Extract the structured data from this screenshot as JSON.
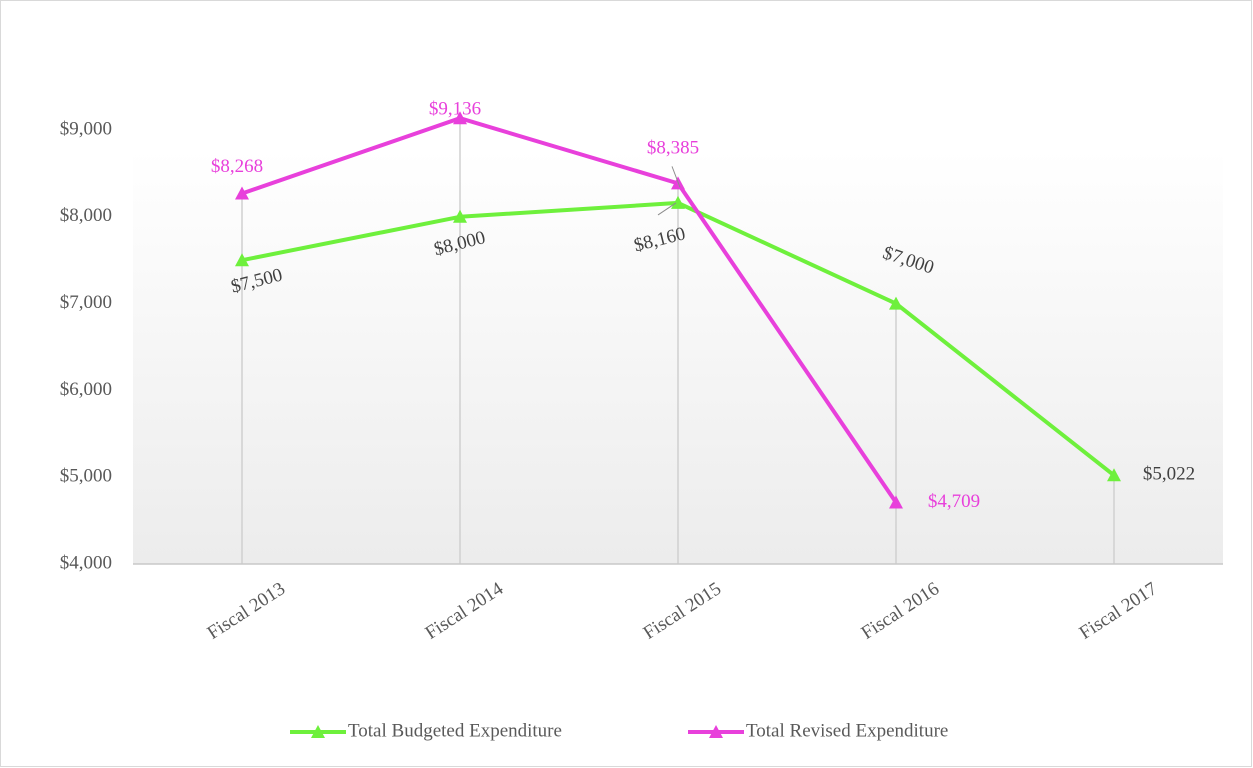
{
  "chart_data": {
    "type": "line",
    "categories": [
      "Fiscal 2013",
      "Fiscal 2014",
      "Fiscal 2015",
      "Fiscal 2016",
      "Fiscal 2017"
    ],
    "series": [
      {
        "name": "Total Budgeted Expenditure",
        "color": "#6ef03c",
        "label_color": "#404040",
        "values": [
          7500,
          8000,
          8160,
          7000,
          5022
        ],
        "value_labels": [
          "$7,500",
          "$8,000",
          "$8,160",
          "$7,000",
          "$5,022"
        ]
      },
      {
        "name": "Total Revised Expenditure",
        "color": "#e840db",
        "label_color": "#e840db",
        "values": [
          8268,
          9136,
          8385,
          4709,
          null
        ],
        "value_labels": [
          "$8,268",
          "$9,136",
          "$8,385",
          "$4,709",
          null
        ]
      }
    ],
    "ylim": [
      4000,
      9000
    ],
    "yticks": [
      {
        "value": 4000,
        "label": "$4,000"
      },
      {
        "value": 5000,
        "label": "$5,000"
      },
      {
        "value": 6000,
        "label": "$6,000"
      },
      {
        "value": 7000,
        "label": "$7,000"
      },
      {
        "value": 8000,
        "label": "$8,000"
      },
      {
        "value": 9000,
        "label": "$9,000"
      }
    ],
    "drop_lines": true,
    "legend": "bottom"
  }
}
